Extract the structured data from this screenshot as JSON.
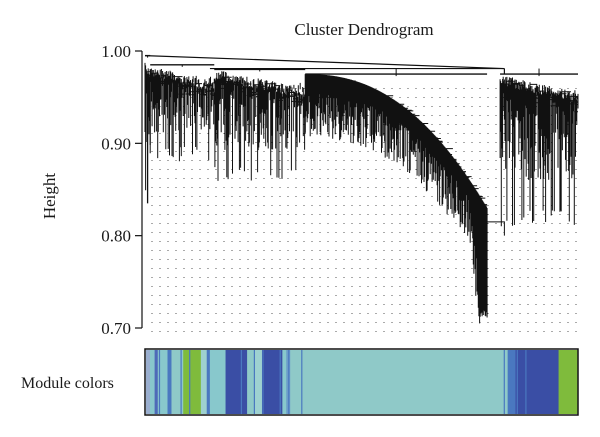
{
  "chart_data": {
    "type": "dendrogram",
    "title": "Cluster Dendrogram",
    "ylabel": "Height",
    "xlabel": "",
    "ylim": [
      0.695,
      1.0
    ],
    "yticks": [
      1.0,
      0.9,
      0.8,
      0.7
    ],
    "ytick_labels": [
      "1.00",
      "0.90",
      "0.80",
      "0.70"
    ],
    "grid": "dotted",
    "main_branches": [
      {
        "name": "left-tail-branch",
        "x_range": [
          0.0,
          0.012
        ],
        "top": 0.995,
        "bottom": 0.835
      },
      {
        "name": "branch-1",
        "x_range": [
          0.012,
          0.16
        ],
        "top": 0.985,
        "bottom": 0.88
      },
      {
        "name": "branch-2",
        "x_range": [
          0.16,
          0.37
        ],
        "top": 0.98,
        "bottom": 0.855
      },
      {
        "name": "big-sloping-branch",
        "x_range": [
          0.37,
          0.79
        ],
        "top": 0.975,
        "bottom": 0.71
      },
      {
        "name": "right-branch",
        "x_range": [
          0.82,
          1.0
        ],
        "top": 0.975,
        "bottom": 0.81
      }
    ],
    "module_colors_label": "Module colors",
    "module_colors": [
      {
        "color": "#9aaecf",
        "width": 0.01
      },
      {
        "color": "#88c8cc",
        "width": 0.012
      },
      {
        "color": "#4e6bb8",
        "width": 0.008
      },
      {
        "color": "#88c8cc",
        "width": 0.025
      },
      {
        "color": "#4a78c0",
        "width": 0.01
      },
      {
        "color": "#8fc9c8",
        "width": 0.03
      },
      {
        "color": "#7fbb3c",
        "width": 0.045
      },
      {
        "color": "#9ed1d0",
        "width": 0.015
      },
      {
        "color": "#4a78c0",
        "width": 0.008
      },
      {
        "color": "#88c8cc",
        "width": 0.04
      },
      {
        "color": "#3a4ea5",
        "width": 0.055
      },
      {
        "color": "#8fc9c8",
        "width": 0.02
      },
      {
        "color": "#9ed1d0",
        "width": 0.018
      },
      {
        "color": "#3a4ea5",
        "width": 0.052
      },
      {
        "color": "#88c8cc",
        "width": 0.01
      },
      {
        "color": "#6b9dc9",
        "width": 0.01
      },
      {
        "color": "#8fc9c8",
        "width": 0.555
      },
      {
        "color": "#4a78c0",
        "width": 0.02
      },
      {
        "color": "#3a4ea5",
        "width": 0.11
      },
      {
        "color": "#7fbb3c",
        "width": 0.047
      }
    ]
  },
  "colors": {
    "tree": "#111111",
    "grid": "#555555",
    "axis": "#111111"
  }
}
